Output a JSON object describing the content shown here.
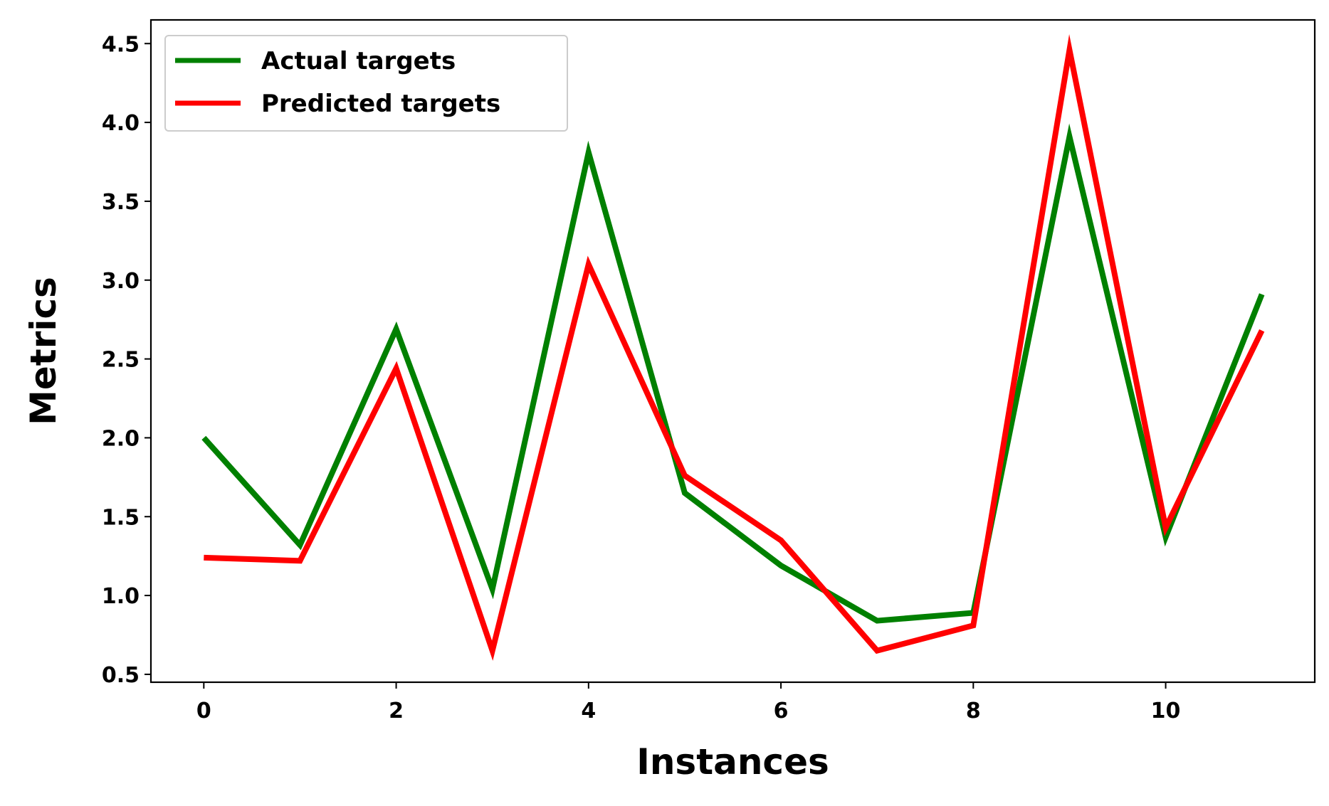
{
  "chart_data": {
    "type": "line",
    "title": "",
    "xlabel": "Instances",
    "ylabel": "Metrics",
    "x": [
      0,
      1,
      2,
      3,
      4,
      5,
      6,
      7,
      8,
      9,
      10,
      11
    ],
    "xlim": [
      -0.55,
      11.55
    ],
    "ylim": [
      0.45,
      4.65
    ],
    "xticks": [
      0,
      2,
      4,
      6,
      8,
      10
    ],
    "yticks": [
      0.5,
      1.0,
      1.5,
      2.0,
      2.5,
      3.0,
      3.5,
      4.0,
      4.5
    ],
    "xtick_labels": [
      "0",
      "2",
      "4",
      "6",
      "8",
      "10"
    ],
    "ytick_labels": [
      "0.5",
      "1.0",
      "1.5",
      "2.0",
      "2.5",
      "3.0",
      "3.5",
      "4.0",
      "4.5"
    ],
    "grid": false,
    "legend_position": "top-left",
    "series": [
      {
        "name": "Actual targets",
        "color": "#008000",
        "values": [
          2.0,
          1.32,
          2.69,
          1.04,
          3.81,
          1.65,
          1.19,
          0.84,
          0.89,
          3.91,
          1.37,
          2.91
        ]
      },
      {
        "name": "Predicted targets",
        "color": "#ff0000",
        "values": [
          1.24,
          1.22,
          2.44,
          0.65,
          3.1,
          1.76,
          1.35,
          0.65,
          0.81,
          4.46,
          1.43,
          2.68
        ]
      }
    ]
  }
}
